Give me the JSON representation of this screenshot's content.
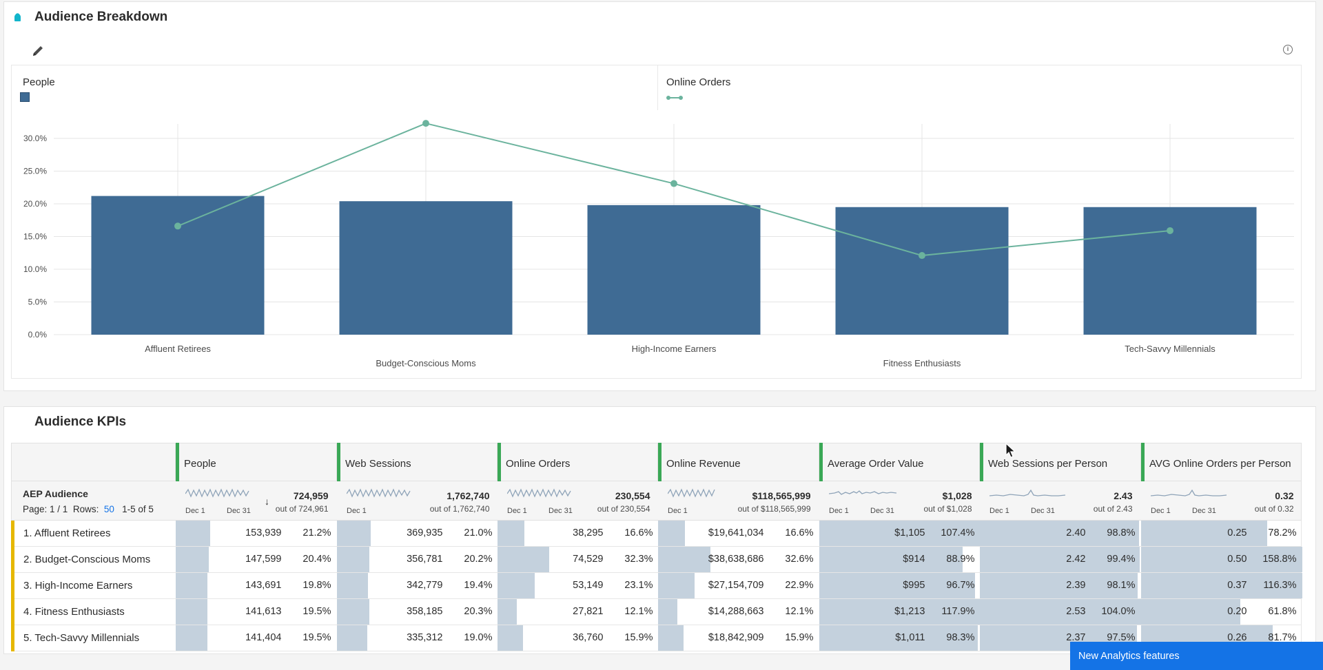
{
  "panel1": {
    "title": "Audience Breakdown",
    "legend_left": "People",
    "legend_right": "Online Orders"
  },
  "chart_data": {
    "type": "bar",
    "categories": [
      "Affluent Retirees",
      "Budget-Conscious Moms",
      "High-Income Earners",
      "Fitness Enthusiasts",
      "Tech-Savvy Millennials"
    ],
    "series": [
      {
        "name": "People",
        "type": "bar",
        "values": [
          21.2,
          20.4,
          19.8,
          19.5,
          19.5
        ],
        "color": "#3f6b94"
      },
      {
        "name": "Online Orders",
        "type": "line",
        "values": [
          16.6,
          32.3,
          23.1,
          12.1,
          15.9
        ],
        "color": "#6bb39d"
      }
    ],
    "yticks": [
      "0.0%",
      "5.0%",
      "10.0%",
      "15.0%",
      "20.0%",
      "25.0%",
      "30.0%"
    ],
    "ylim": [
      0,
      32.3
    ],
    "grid": true,
    "legend": "top-left"
  },
  "panel2": {
    "title": "Audience KPIs",
    "dimension_title": "AEP Audience",
    "page_text": "Page: 1 / 1",
    "rows_text": "Rows:",
    "rows_value": "50",
    "range_text": "1-5 of 5",
    "spark_start": "Dec 1",
    "spark_end": "Dec 31",
    "columns": [
      {
        "label": "People",
        "total": "724,959",
        "outof": "out of 724,961"
      },
      {
        "label": "Web Sessions",
        "total": "1,762,740",
        "outof": "out of 1,762,740"
      },
      {
        "label": "Online Orders",
        "total": "230,554",
        "outof": "out of 230,554"
      },
      {
        "label": "Online Revenue",
        "total": "$118,565,999",
        "outof": "out of $118,565,999"
      },
      {
        "label": "Average Order Value",
        "total": "$1,028",
        "outof": "out of $1,028"
      },
      {
        "label": "Web Sessions per Person",
        "total": "2.43",
        "outof": "out of 2.43"
      },
      {
        "label": "AVG Online Orders per Person",
        "total": "0.32",
        "outof": "out of 0.32"
      }
    ],
    "rows": [
      {
        "label": "1.  Affluent Retirees",
        "cells": [
          [
            "153,939",
            "21.2%"
          ],
          [
            "369,935",
            "21.0%"
          ],
          [
            "38,295",
            "16.6%"
          ],
          [
            "$19,641,034",
            "16.6%"
          ],
          [
            "$1,105",
            "107.4%"
          ],
          [
            "2.40",
            "98.8%"
          ],
          [
            "0.25",
            "78.2%"
          ]
        ],
        "fills": [
          21.2,
          21.0,
          16.6,
          16.6,
          100,
          98.8,
          78.2
        ]
      },
      {
        "label": "2.  Budget-Conscious Moms",
        "cells": [
          [
            "147,599",
            "20.4%"
          ],
          [
            "356,781",
            "20.2%"
          ],
          [
            "74,529",
            "32.3%"
          ],
          [
            "$38,638,686",
            "32.6%"
          ],
          [
            "$914",
            "88.9%"
          ],
          [
            "2.42",
            "99.4%"
          ],
          [
            "0.50",
            "158.8%"
          ]
        ],
        "fills": [
          20.4,
          20.2,
          32.3,
          32.6,
          88.9,
          99.4,
          100
        ]
      },
      {
        "label": "3.  High-Income Earners",
        "cells": [
          [
            "143,691",
            "19.8%"
          ],
          [
            "342,779",
            "19.4%"
          ],
          [
            "53,149",
            "23.1%"
          ],
          [
            "$27,154,709",
            "22.9%"
          ],
          [
            "$995",
            "96.7%"
          ],
          [
            "2.39",
            "98.1%"
          ],
          [
            "0.37",
            "116.3%"
          ]
        ],
        "fills": [
          19.8,
          19.4,
          23.1,
          22.9,
          96.7,
          98.1,
          100
        ]
      },
      {
        "label": "4.  Fitness Enthusiasts",
        "cells": [
          [
            "141,613",
            "19.5%"
          ],
          [
            "358,185",
            "20.3%"
          ],
          [
            "27,821",
            "12.1%"
          ],
          [
            "$14,288,663",
            "12.1%"
          ],
          [
            "$1,213",
            "117.9%"
          ],
          [
            "2.53",
            "104.0%"
          ],
          [
            "0.20",
            "61.8%"
          ]
        ],
        "fills": [
          19.5,
          20.3,
          12.1,
          12.1,
          100,
          100,
          61.8
        ]
      },
      {
        "label": "5.  Tech-Savvy Millennials",
        "cells": [
          [
            "141,404",
            "19.5%"
          ],
          [
            "335,312",
            "19.0%"
          ],
          [
            "36,760",
            "15.9%"
          ],
          [
            "$18,842,909",
            "15.9%"
          ],
          [
            "$1,011",
            "98.3%"
          ],
          [
            "2.37",
            "97.5%"
          ],
          [
            "0.26",
            "81.7%"
          ]
        ],
        "fills": [
          19.5,
          19.0,
          15.9,
          15.9,
          98.3,
          97.5,
          81.7
        ]
      }
    ]
  },
  "toast": {
    "label": "New Analytics features"
  },
  "colors": {
    "accent": "#12b5cb",
    "bar": "#3f6b94",
    "line": "#6bb39d",
    "fill": "#c4d1dd",
    "handle": "#3aa856",
    "row_accent": "#e6b800",
    "toast": "#1473e6"
  }
}
